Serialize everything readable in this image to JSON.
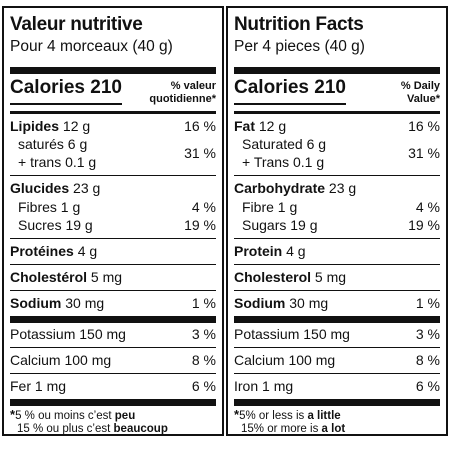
{
  "fr": {
    "title": "Valeur nutritive",
    "serving": "Pour 4 morceaux (40 g)",
    "calories_label": "Calories",
    "calories_value": "210",
    "dv_line1": "% valeur",
    "dv_line2": "quotidienne",
    "dv_star": "*",
    "fat_label": "Lipides",
    "fat_value": "12 g",
    "fat_pct": "16 %",
    "sat": "saturés 6 g",
    "trans": "+ trans 0.1 g",
    "sat_trans_pct": "31 %",
    "carb_label": "Glucides",
    "carb_value": "23 g",
    "fibre": "Fibres 1 g",
    "fibre_pct": "4 %",
    "sugars": "Sucres 19 g",
    "sugars_pct": "19 %",
    "protein_label": "Protéines",
    "protein_value": "4 g",
    "chol_label": "Cholestérol",
    "chol_value": "5 mg",
    "sodium_label": "Sodium",
    "sodium_value": "30 mg",
    "sodium_pct": "1 %",
    "potassium": "Potassium 150 mg",
    "potassium_pct": "3 %",
    "calcium": "Calcium 100 mg",
    "calcium_pct": "8 %",
    "iron": "Fer 1 mg",
    "iron_pct": "6 %",
    "foot_star": "*",
    "foot1_a": "5 % ou moins c’est ",
    "foot1_b": "peu",
    "foot2_a": "15 % ou plus c’est ",
    "foot2_b": "beaucoup"
  },
  "en": {
    "title": "Nutrition Facts",
    "serving": "Per 4 pieces (40 g)",
    "calories_label": "Calories",
    "calories_value": "210",
    "dv_line1": "% Daily",
    "dv_line2": "Value",
    "dv_star": "*",
    "fat_label": "Fat",
    "fat_value": "12 g",
    "fat_pct": "16 %",
    "sat": "Saturated 6 g",
    "trans": "+ Trans 0.1 g",
    "sat_trans_pct": "31 %",
    "carb_label": "Carbohydrate",
    "carb_value": "23 g",
    "fibre": "Fibre 1 g",
    "fibre_pct": "4 %",
    "sugars": "Sugars 19 g",
    "sugars_pct": "19 %",
    "protein_label": "Protein",
    "protein_value": "4 g",
    "chol_label": "Cholesterol",
    "chol_value": "5 mg",
    "sodium_label": "Sodium",
    "sodium_value": "30 mg",
    "sodium_pct": "1 %",
    "potassium": "Potassium 150 mg",
    "potassium_pct": "3 %",
    "calcium": "Calcium 100 mg",
    "calcium_pct": "8 %",
    "iron": "Iron 1 mg",
    "iron_pct": "6 %",
    "foot_star": "*",
    "foot1_a": "5% or less is ",
    "foot1_b": "a little",
    "foot2_a": "15% or more is ",
    "foot2_b": "a lot"
  }
}
